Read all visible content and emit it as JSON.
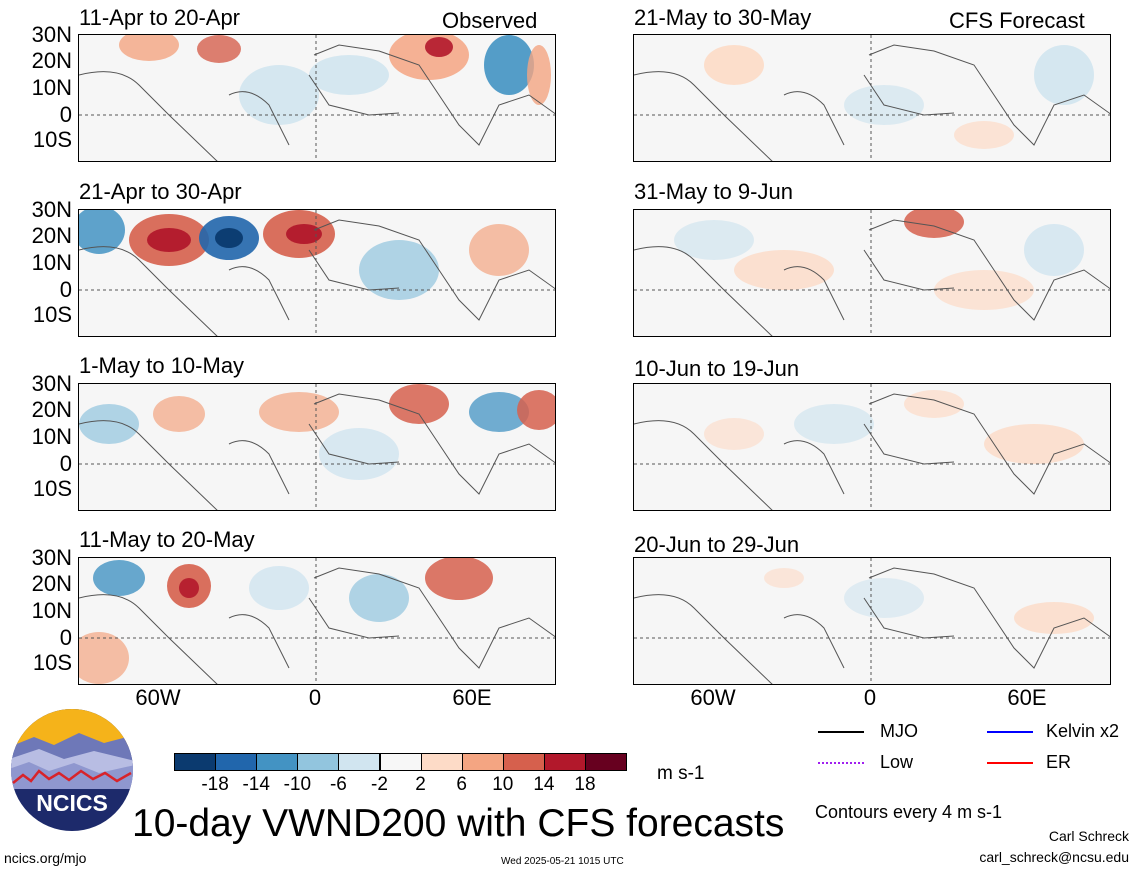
{
  "panels": [
    {
      "title": "11-Apr to 20-Apr",
      "tag": "Observed"
    },
    {
      "title": "21-Apr to 30-Apr",
      "tag": ""
    },
    {
      "title": "1-May to 10-May",
      "tag": ""
    },
    {
      "title": "11-May to 20-May",
      "tag": ""
    },
    {
      "title": "21-May to 30-May",
      "tag": "CFS Forecast"
    },
    {
      "title": "31-May to 9-Jun",
      "tag": ""
    },
    {
      "title": "10-Jun to 19-Jun",
      "tag": ""
    },
    {
      "title": "20-Jun to 29-Jun",
      "tag": ""
    }
  ],
  "lat_ticks": [
    "30N",
    "20N",
    "10N",
    "0",
    "10S"
  ],
  "lon_ticks": [
    "60W",
    "0",
    "60E"
  ],
  "colorbar": {
    "colors": [
      "#0b3a6f",
      "#2166ac",
      "#4393c3",
      "#92c5de",
      "#d1e5f0",
      "#f7f7f7",
      "#fddbc7",
      "#f4a582",
      "#d6604d",
      "#b2182b",
      "#67001f"
    ],
    "labels": [
      "-18",
      "-14",
      "-10",
      "-6",
      "-2",
      "2",
      "6",
      "10",
      "14",
      "18"
    ],
    "units": "m s-1"
  },
  "legend": [
    {
      "label": "MJO",
      "color": "#000000"
    },
    {
      "label": "Kelvin x2",
      "color": "#0000ff"
    },
    {
      "label": "Low",
      "color": "#a020f0"
    },
    {
      "label": "ER",
      "color": "#ff0000"
    }
  ],
  "contour_note": "Contours every 4 m s-1",
  "title": "10-day VWND200 with CFS forecasts",
  "logo_text": "NCICS",
  "footer": {
    "left": "ncics.org/mjo",
    "center": "Wed 2025-05-21 1015 UTC",
    "author": "Carl Schreck",
    "email": "carl_schreck@ncsu.edu"
  },
  "chart_data": {
    "type": "heatmap",
    "variable": "VWND200",
    "units": "m s-1",
    "contour_interval": 4,
    "color_levels": [
      -18,
      -14,
      -10,
      -6,
      -2,
      2,
      6,
      10,
      14,
      18
    ],
    "lat_range": [
      "10S",
      "30N"
    ],
    "lon_ticks": [
      "60W",
      "0",
      "60E"
    ],
    "panels": [
      {
        "title": "11-Apr to 20-Apr",
        "source": "Observed"
      },
      {
        "title": "21-Apr to 30-Apr",
        "source": "Observed"
      },
      {
        "title": "1-May to 10-May",
        "source": "Observed"
      },
      {
        "title": "11-May to 20-May",
        "source": "Observed"
      },
      {
        "title": "21-May to 30-May",
        "source": "CFS Forecast"
      },
      {
        "title": "31-May to 9-Jun",
        "source": "CFS Forecast"
      },
      {
        "title": "10-Jun to 19-Jun",
        "source": "CFS Forecast"
      },
      {
        "title": "20-Jun to 29-Jun",
        "source": "CFS Forecast"
      }
    ]
  }
}
